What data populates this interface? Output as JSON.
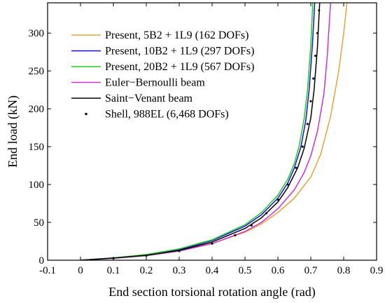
{
  "chart_data": {
    "type": "line",
    "xlabel": "End section torsional rotation angle (rad)",
    "ylabel": "End load (kN)",
    "xlim": [
      -0.1,
      0.9
    ],
    "ylim": [
      0,
      340
    ],
    "xticks": [
      "-0.1",
      "0",
      "0.1",
      "0.2",
      "0.3",
      "0.4",
      "0.5",
      "0.6",
      "0.7",
      "0.8",
      "0.9"
    ],
    "yticks": [
      "0",
      "50",
      "100",
      "150",
      "200",
      "250",
      "300"
    ],
    "legend_placement": "top-left",
    "grid": false,
    "series": [
      {
        "name": "Present,  5B2 + 1L9 (162 DOFs)",
        "color": "#e6a23c",
        "style": "line",
        "points": [
          [
            0,
            0
          ],
          [
            0.1,
            3
          ],
          [
            0.2,
            7
          ],
          [
            0.3,
            13
          ],
          [
            0.4,
            22
          ],
          [
            0.5,
            37
          ],
          [
            0.55,
            48
          ],
          [
            0.6,
            63
          ],
          [
            0.65,
            82
          ],
          [
            0.7,
            110
          ],
          [
            0.73,
            140
          ],
          [
            0.76,
            190
          ],
          [
            0.785,
            250
          ],
          [
            0.8,
            300
          ],
          [
            0.81,
            340
          ]
        ]
      },
      {
        "name": "Present, 10B2 + 1L9 (297 DOFs)",
        "color": "#1010ee",
        "style": "line",
        "points": [
          [
            0,
            0
          ],
          [
            0.1,
            3
          ],
          [
            0.2,
            7
          ],
          [
            0.3,
            14
          ],
          [
            0.4,
            26
          ],
          [
            0.5,
            45
          ],
          [
            0.55,
            60
          ],
          [
            0.6,
            82
          ],
          [
            0.63,
            102
          ],
          [
            0.65,
            122
          ],
          [
            0.67,
            150
          ],
          [
            0.685,
            185
          ],
          [
            0.695,
            225
          ],
          [
            0.705,
            285
          ],
          [
            0.712,
            340
          ]
        ]
      },
      {
        "name": "Present, 20B2 + 1L9 (567 DOFs)",
        "color": "#22cc22",
        "style": "line",
        "points": [
          [
            0,
            0
          ],
          [
            0.1,
            3
          ],
          [
            0.2,
            7.5
          ],
          [
            0.3,
            15
          ],
          [
            0.4,
            27
          ],
          [
            0.5,
            47
          ],
          [
            0.55,
            63
          ],
          [
            0.6,
            86
          ],
          [
            0.63,
            107
          ],
          [
            0.65,
            128
          ],
          [
            0.665,
            152
          ],
          [
            0.68,
            188
          ],
          [
            0.69,
            225
          ],
          [
            0.7,
            285
          ],
          [
            0.706,
            340
          ]
        ]
      },
      {
        "name": "Euler−Bernoulli beam",
        "color": "#cc33cc",
        "style": "line",
        "points": [
          [
            0,
            0
          ],
          [
            0.1,
            2.5
          ],
          [
            0.2,
            6
          ],
          [
            0.3,
            12
          ],
          [
            0.4,
            22
          ],
          [
            0.5,
            38
          ],
          [
            0.55,
            50
          ],
          [
            0.6,
            68
          ],
          [
            0.65,
            93
          ],
          [
            0.68,
            116
          ],
          [
            0.7,
            138
          ],
          [
            0.72,
            170
          ],
          [
            0.74,
            220
          ],
          [
            0.75,
            270
          ],
          [
            0.76,
            340
          ]
        ]
      },
      {
        "name": "Saint−Venant beam",
        "color": "#000000",
        "style": "line",
        "points": [
          [
            0,
            0
          ],
          [
            0.1,
            2.8
          ],
          [
            0.2,
            6.5
          ],
          [
            0.3,
            13
          ],
          [
            0.4,
            24
          ],
          [
            0.5,
            42
          ],
          [
            0.55,
            56
          ],
          [
            0.6,
            77
          ],
          [
            0.63,
            96
          ],
          [
            0.66,
            122
          ],
          [
            0.68,
            148
          ],
          [
            0.7,
            188
          ],
          [
            0.71,
            225
          ],
          [
            0.72,
            280
          ],
          [
            0.727,
            340
          ]
        ]
      },
      {
        "name": "Shell,  988EL (6,468 DOFs)",
        "color": "#111111",
        "style": "markers",
        "points": [
          [
            0.1,
            2.5
          ],
          [
            0.2,
            6
          ],
          [
            0.3,
            12
          ],
          [
            0.4,
            22
          ],
          [
            0.47,
            33
          ],
          [
            0.52,
            46
          ],
          [
            0.565,
            62
          ],
          [
            0.6,
            80
          ],
          [
            0.63,
            100
          ],
          [
            0.655,
            122
          ],
          [
            0.675,
            150
          ],
          [
            0.69,
            180
          ],
          [
            0.7,
            210
          ],
          [
            0.708,
            240
          ],
          [
            0.714,
            270
          ],
          [
            0.72,
            300
          ],
          [
            0.725,
            330
          ]
        ]
      }
    ]
  }
}
